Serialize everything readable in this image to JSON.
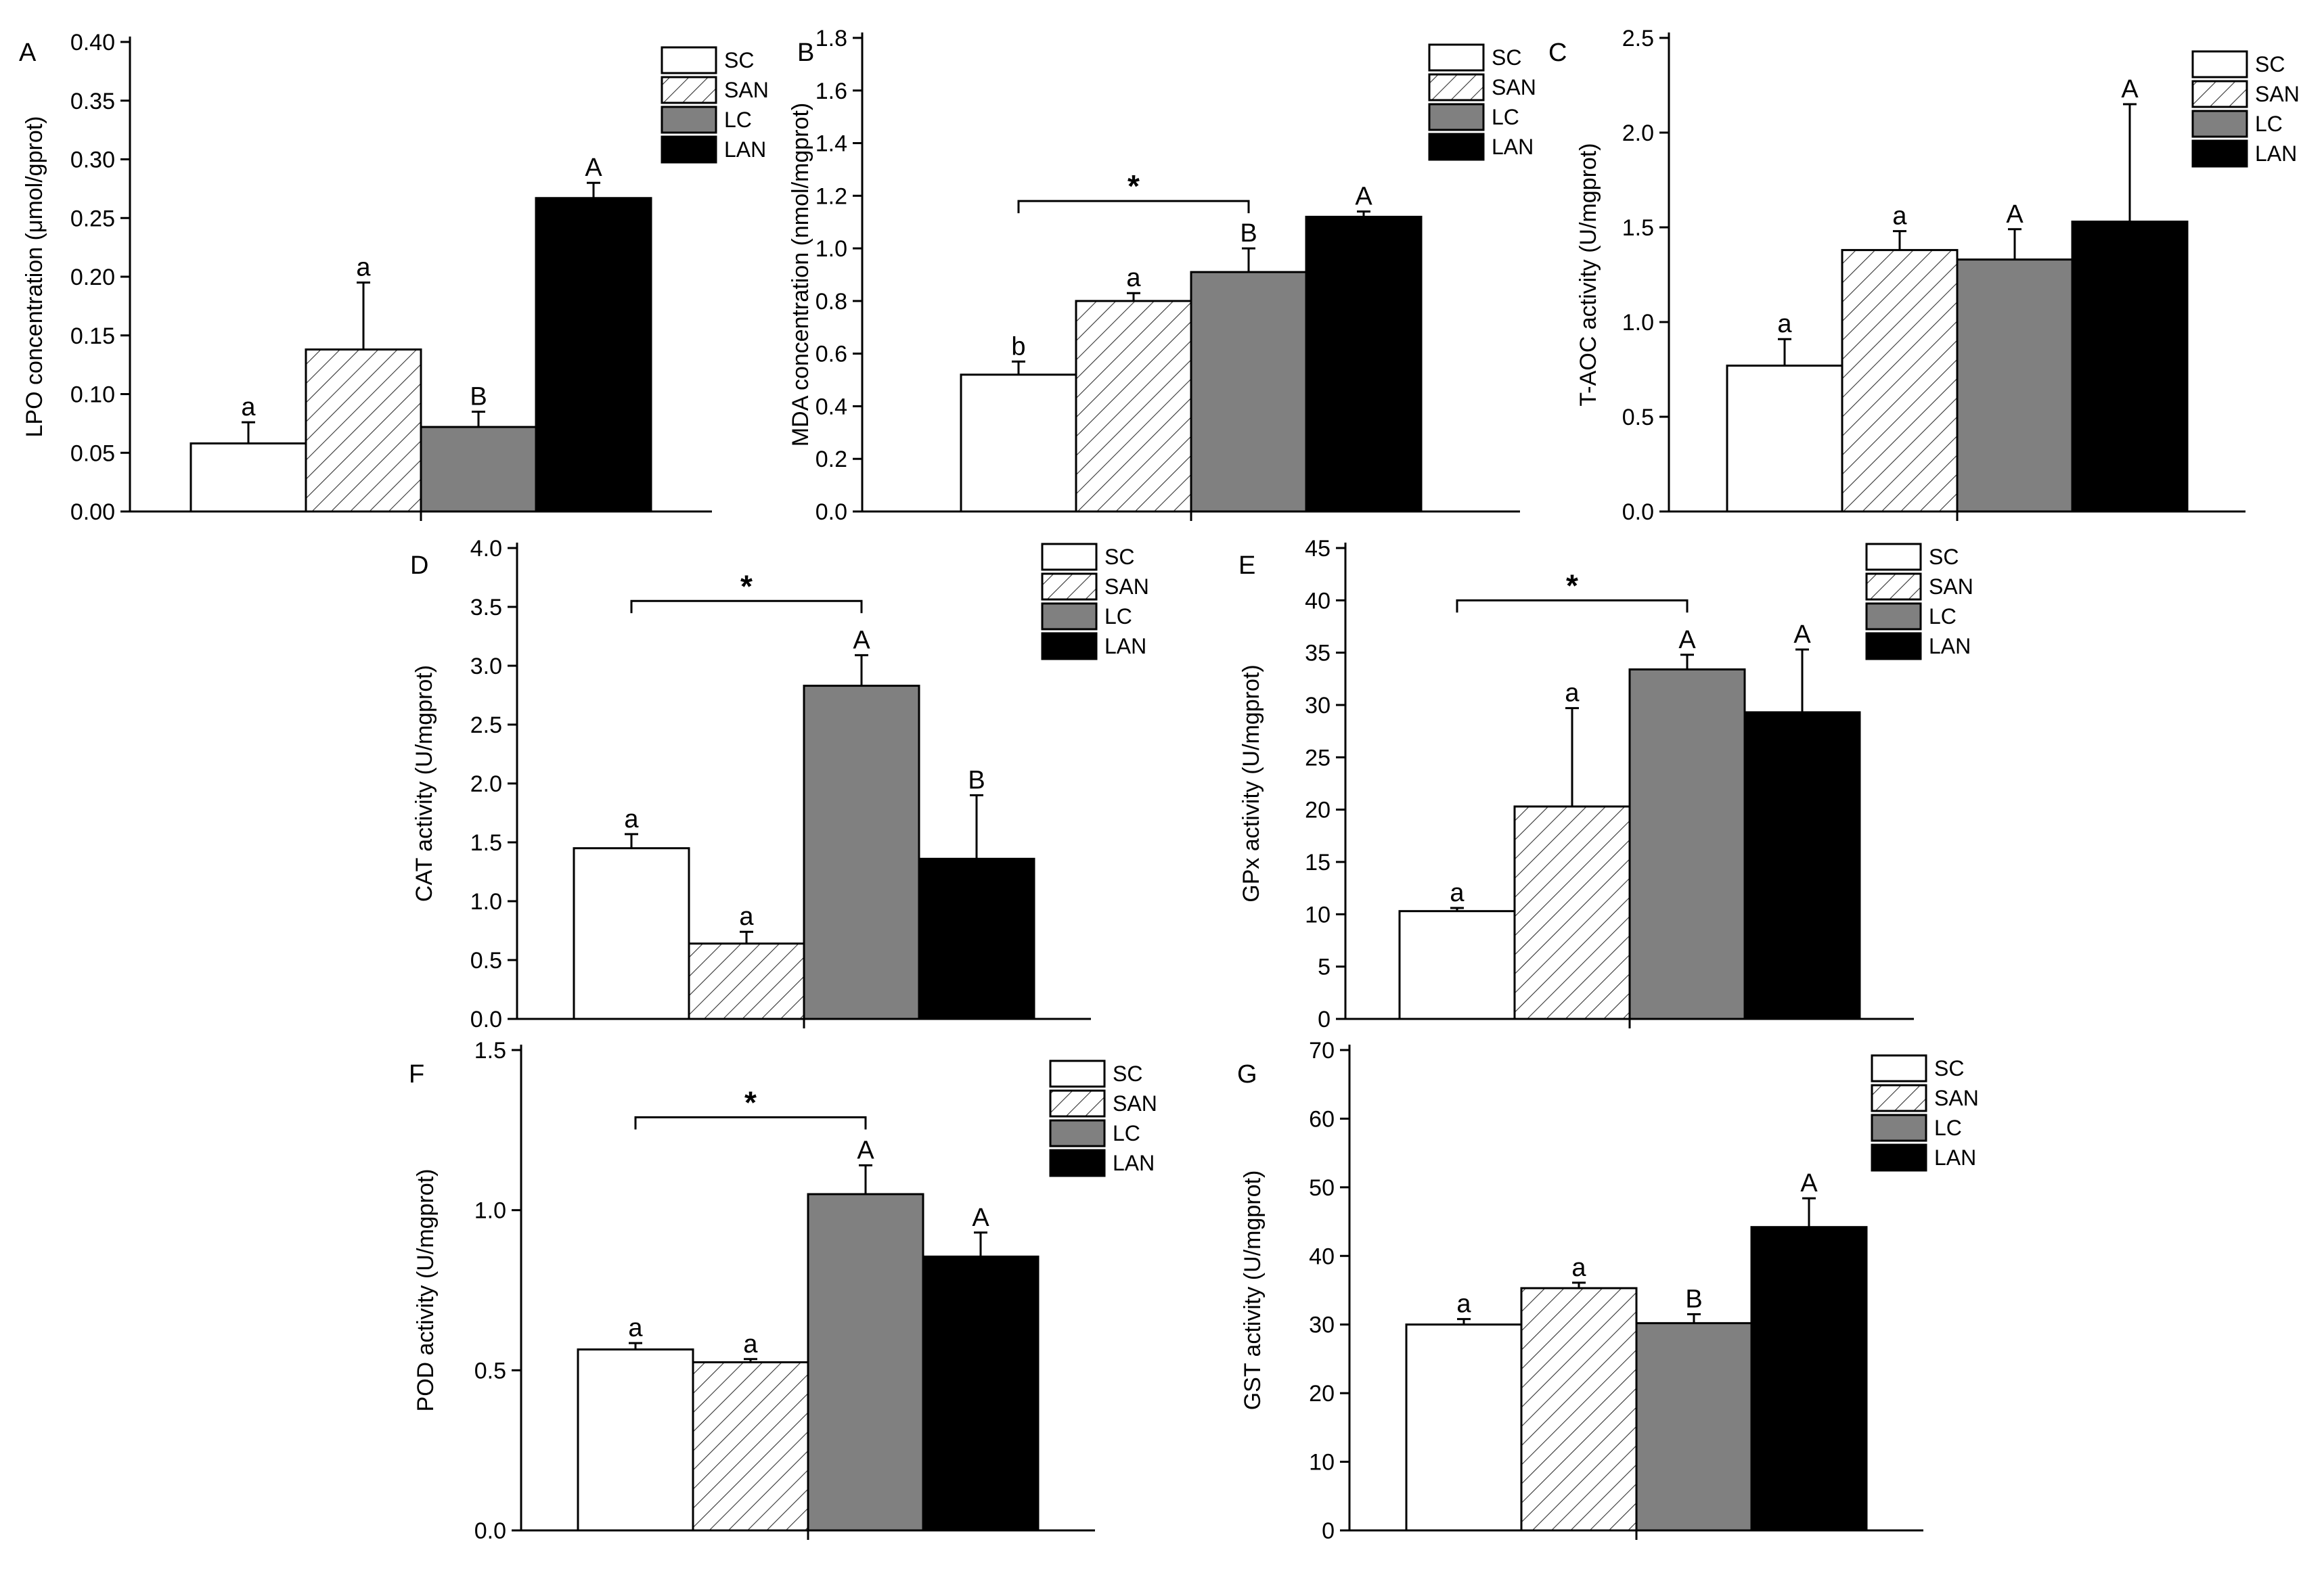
{
  "legend_labels": [
    "SC",
    "SAN",
    "LC",
    "LAN"
  ],
  "series_fills": {
    "SC": "#ffffff",
    "SAN": "hatch",
    "LC": "#808080",
    "LAN": "#000000"
  },
  "chart_data": [
    {
      "id": "A",
      "panel_label": "A",
      "type": "bar",
      "ylabel": "LPO concentration (μmol/gprot)",
      "ylim": [
        0,
        0.4
      ],
      "ytick_step": 0.05,
      "ytick_labels": [
        "0.00",
        "0.05",
        "0.10",
        "0.15",
        "0.20",
        "0.25",
        "0.30",
        "0.35",
        "0.40"
      ],
      "series": [
        {
          "name": "SC",
          "value": 0.058,
          "error": 0.018,
          "letter": "a"
        },
        {
          "name": "SAN",
          "value": 0.138,
          "error": 0.057,
          "letter": "a"
        },
        {
          "name": "LC",
          "value": 0.072,
          "error": 0.013,
          "letter": "B"
        },
        {
          "name": "LAN",
          "value": 0.267,
          "error": 0.013,
          "letter": "A"
        }
      ],
      "significance": null
    },
    {
      "id": "B",
      "panel_label": "B",
      "type": "bar",
      "ylabel": "MDA concentration (nmol/mgprot)",
      "ylim": [
        0,
        1.8
      ],
      "ytick_step": 0.2,
      "ytick_labels": [
        "0.0",
        "0.2",
        "0.4",
        "0.6",
        "0.8",
        "1.0",
        "1.2",
        "1.4",
        "1.6",
        "1.8"
      ],
      "series": [
        {
          "name": "SC",
          "value": 0.52,
          "error": 0.05,
          "letter": "b"
        },
        {
          "name": "SAN",
          "value": 0.8,
          "error": 0.03,
          "letter": "a"
        },
        {
          "name": "LC",
          "value": 0.91,
          "error": 0.09,
          "letter": "B"
        },
        {
          "name": "LAN",
          "value": 1.12,
          "error": 0.02,
          "letter": "A"
        }
      ],
      "significance": {
        "from": 0,
        "to": 2,
        "y": 1.18,
        "label": "*"
      }
    },
    {
      "id": "C",
      "panel_label": "C",
      "type": "bar",
      "ylabel": "T-AOC activity (U/mgprot)",
      "ylim": [
        0,
        2.5
      ],
      "ytick_step": 0.5,
      "ytick_labels": [
        "0.0",
        "0.5",
        "1.0",
        "1.5",
        "2.0",
        "2.5"
      ],
      "series": [
        {
          "name": "SC",
          "value": 0.77,
          "error": 0.14,
          "letter": "a"
        },
        {
          "name": "SAN",
          "value": 1.38,
          "error": 0.1,
          "letter": "a"
        },
        {
          "name": "LC",
          "value": 1.33,
          "error": 0.16,
          "letter": "A"
        },
        {
          "name": "LAN",
          "value": 1.53,
          "error": 0.62,
          "letter": "A"
        }
      ],
      "significance": null
    },
    {
      "id": "D",
      "panel_label": "D",
      "type": "bar",
      "ylabel": "CAT activity (U/mgprot)",
      "ylim": [
        0,
        4.0
      ],
      "ytick_step": 0.5,
      "ytick_labels": [
        "0.0",
        "0.5",
        "1.0",
        "1.5",
        "2.0",
        "2.5",
        "3.0",
        "3.5",
        "4.0"
      ],
      "series": [
        {
          "name": "SC",
          "value": 1.45,
          "error": 0.12,
          "letter": "a"
        },
        {
          "name": "SAN",
          "value": 0.64,
          "error": 0.1,
          "letter": "a"
        },
        {
          "name": "LC",
          "value": 2.83,
          "error": 0.26,
          "letter": "A"
        },
        {
          "name": "LAN",
          "value": 1.36,
          "error": 0.54,
          "letter": "B"
        }
      ],
      "significance": {
        "from": 0,
        "to": 2,
        "y": 3.55,
        "label": "*"
      }
    },
    {
      "id": "E",
      "panel_label": "E",
      "type": "bar",
      "ylabel": "GPx activity (U/mgprot)",
      "ylim": [
        0,
        45
      ],
      "ytick_step": 5,
      "ytick_labels": [
        "0",
        "5",
        "10",
        "15",
        "20",
        "25",
        "30",
        "35",
        "40",
        "45"
      ],
      "series": [
        {
          "name": "SC",
          "value": 10.3,
          "error": 0.3,
          "letter": "a"
        },
        {
          "name": "SAN",
          "value": 20.3,
          "error": 9.4,
          "letter": "a"
        },
        {
          "name": "LC",
          "value": 33.4,
          "error": 1.4,
          "letter": "A"
        },
        {
          "name": "LAN",
          "value": 29.3,
          "error": 6.0,
          "letter": "A"
        }
      ],
      "significance": {
        "from": 0,
        "to": 2,
        "y": 40.0,
        "label": "*"
      }
    },
    {
      "id": "F",
      "panel_label": "F",
      "type": "bar",
      "ylabel": "POD activity (U/mgprot)",
      "ylim": [
        0,
        1.5
      ],
      "ytick_step": 0.5,
      "ytick_labels": [
        "0.0",
        "0.5",
        "1.0",
        "1.5"
      ],
      "series": [
        {
          "name": "SC",
          "value": 0.565,
          "error": 0.02,
          "letter": "a"
        },
        {
          "name": "SAN",
          "value": 0.525,
          "error": 0.01,
          "letter": "a"
        },
        {
          "name": "LC",
          "value": 1.05,
          "error": 0.09,
          "letter": "A"
        },
        {
          "name": "LAN",
          "value": 0.855,
          "error": 0.075,
          "letter": "A"
        }
      ],
      "significance": {
        "from": 0,
        "to": 2,
        "y": 1.29,
        "label": "*"
      }
    },
    {
      "id": "G",
      "panel_label": "G",
      "type": "bar",
      "ylabel": "GST activity (U/mgprot)",
      "ylim": [
        0,
        70
      ],
      "ytick_step": 10,
      "ytick_labels": [
        "0",
        "10",
        "20",
        "30",
        "40",
        "50",
        "60",
        "70"
      ],
      "series": [
        {
          "name": "SC",
          "value": 30.0,
          "error": 0.8,
          "letter": "a"
        },
        {
          "name": "SAN",
          "value": 35.3,
          "error": 0.8,
          "letter": "a"
        },
        {
          "name": "LC",
          "value": 30.2,
          "error": 1.3,
          "letter": "B"
        },
        {
          "name": "LAN",
          "value": 44.2,
          "error": 4.2,
          "letter": "A"
        }
      ],
      "significance": null
    }
  ]
}
